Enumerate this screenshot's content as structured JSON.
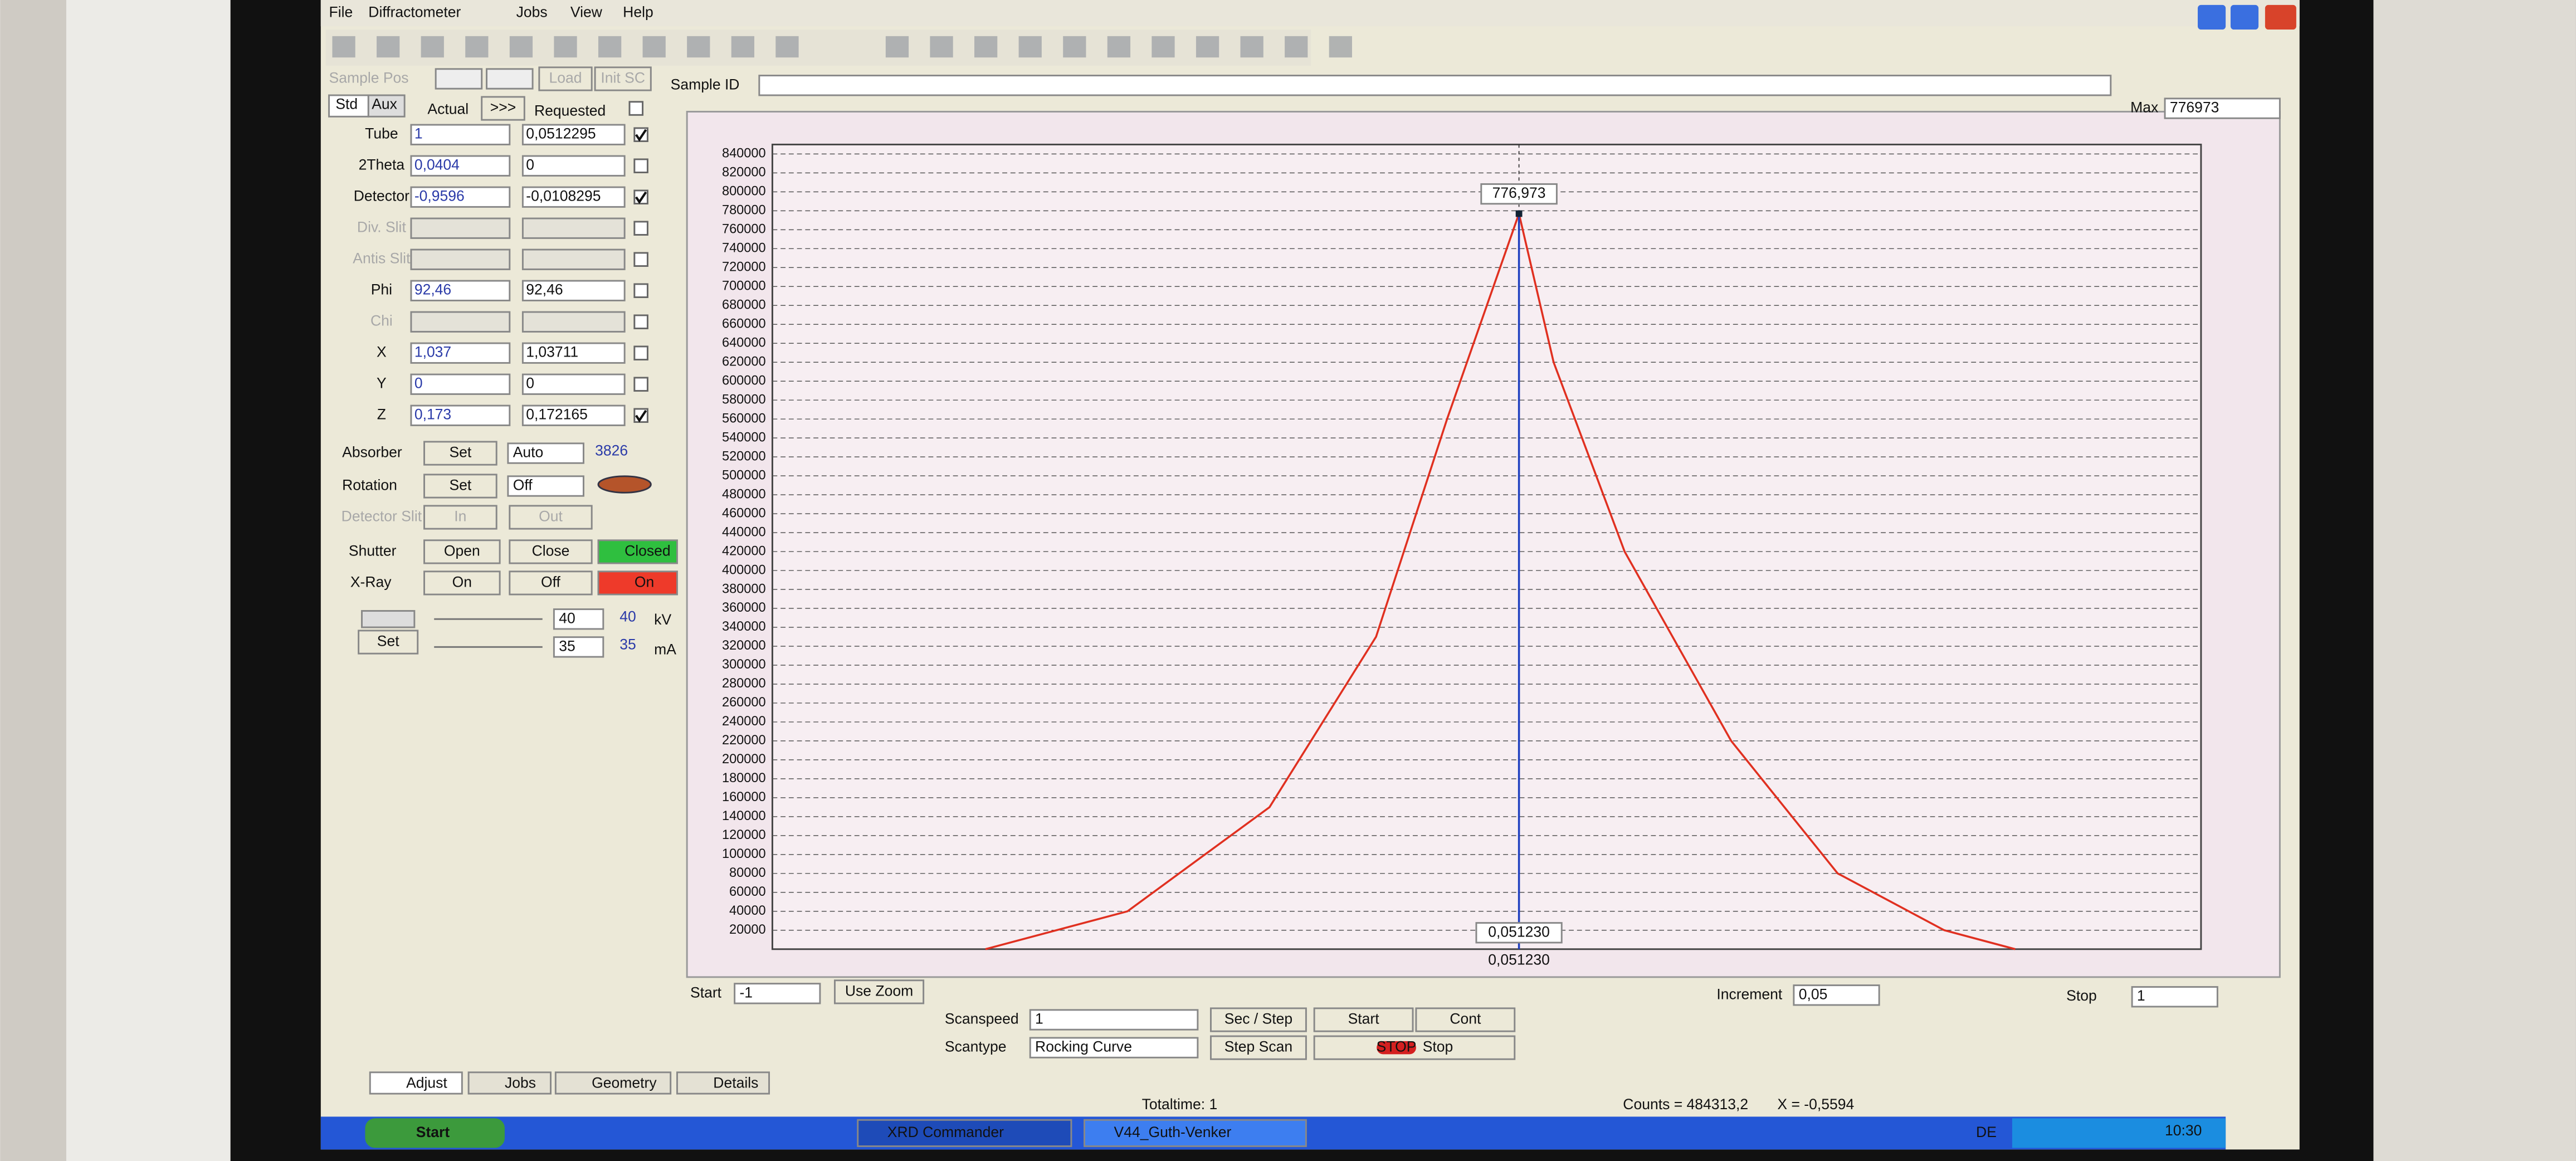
{
  "menu": [
    "File",
    "Diffractometer",
    "Jobs",
    "View",
    "Help"
  ],
  "sample_bar": {
    "sample_pos": "Sample Pos",
    "load": "Load",
    "init_sc": "Init SC",
    "sample_id": "Sample ID",
    "max_label": "Max",
    "max_value": "776973"
  },
  "panel_header": {
    "std": "Std",
    "aux": "Aux",
    "actual": "Actual",
    "arrow": ">>>",
    "requested": "Requested"
  },
  "drives": [
    {
      "label": "Tube",
      "actual": "1",
      "requested": "0,0512295",
      "checked": true
    },
    {
      "label": "2Theta",
      "actual": "0,0404",
      "requested": "0",
      "checked": false
    },
    {
      "label": "Detector",
      "actual": "-0,9596",
      "requested": "-0,0108295",
      "checked": true
    },
    {
      "label": "Div. Slit",
      "checked": false
    },
    {
      "label": "Antis Slit",
      "checked": false
    },
    {
      "label": "Phi",
      "actual": "92,46",
      "requested": "92,46",
      "checked": false
    },
    {
      "label": "Chi",
      "checked": false
    },
    {
      "label": "X",
      "actual": "1,037",
      "requested": "1,03711",
      "checked": false
    },
    {
      "label": "Y",
      "actual": "0",
      "requested": "0",
      "checked": false
    },
    {
      "label": "Z",
      "actual": "0,173",
      "requested": "0,172165",
      "checked": true
    }
  ],
  "controls": {
    "absorber": {
      "label": "Absorber",
      "button": "Set",
      "mode": "Auto",
      "value": "3826"
    },
    "rotation": {
      "label": "Rotation",
      "button": "Set",
      "mode": "Off"
    },
    "detector_slit": {
      "label": "Detector Slit",
      "in": "In",
      "out": "Out"
    },
    "shutter": {
      "label": "Shutter",
      "open": "Open",
      "close": "Close",
      "state": "Closed"
    },
    "xray": {
      "label": "X-Ray",
      "on": "On",
      "off": "Off",
      "state": "On"
    },
    "generator": {
      "set": "Set",
      "kv_req": "40",
      "kv_act": "40",
      "kv_unit": "kV",
      "ma_req": "35",
      "ma_act": "35",
      "ma_unit": "mA"
    }
  },
  "plot": {
    "type": "line",
    "xlim": [
      -1,
      1
    ],
    "ylim": [
      0,
      850000
    ],
    "yticks": [
      20000,
      40000,
      60000,
      80000,
      100000,
      120000,
      140000,
      160000,
      180000,
      200000,
      220000,
      240000,
      260000,
      280000,
      300000,
      320000,
      340000,
      360000,
      380000,
      400000,
      420000,
      440000,
      460000,
      480000,
      500000,
      520000,
      540000,
      560000,
      580000,
      600000,
      620000,
      640000,
      660000,
      680000,
      700000,
      720000,
      740000,
      760000,
      780000,
      800000,
      820000,
      840000
    ],
    "series": [
      {
        "color": "#e03020",
        "x": [
          -0.7,
          -0.5,
          -0.3,
          -0.15,
          -0.05,
          0.05123,
          0.1,
          0.2,
          0.35,
          0.5,
          0.65,
          0.75
        ],
        "y": [
          0,
          40000,
          150000,
          330000,
          560000,
          776973,
          620000,
          420000,
          220000,
          80000,
          20000,
          0
        ]
      }
    ],
    "peak": {
      "x": 0.05123,
      "y": 776973,
      "y_label": "776,973",
      "x_label": "0,051230",
      "color": "#2040c0"
    }
  },
  "scan": {
    "start_label": "Start",
    "start": "-1",
    "use_zoom": "Use Zoom",
    "increment_label": "Increment",
    "increment": "0,05",
    "stop_label": "Stop",
    "stop": "1",
    "scanspeed_label": "Scanspeed",
    "scanspeed": "1",
    "sec_step": "Sec / Step",
    "start_button": "Start",
    "cont": "Cont",
    "scantype_label": "Scantype",
    "scantype": "Rocking Curve",
    "step_scan": "Step Scan",
    "stop_button": "Stop",
    "stop_icon": "STOP"
  },
  "tabs": [
    "Adjust",
    "Jobs",
    "Geometry",
    "Details"
  ],
  "status": {
    "totaltime": "Totaltime: 1",
    "counts": "Counts = 484313,2",
    "xpos": "X = -0,5594"
  },
  "taskbar": {
    "start": "Start",
    "apps": [
      "XRD Commander",
      "V44_Guth-Venker"
    ],
    "lang": "DE",
    "clock": "10:30"
  }
}
